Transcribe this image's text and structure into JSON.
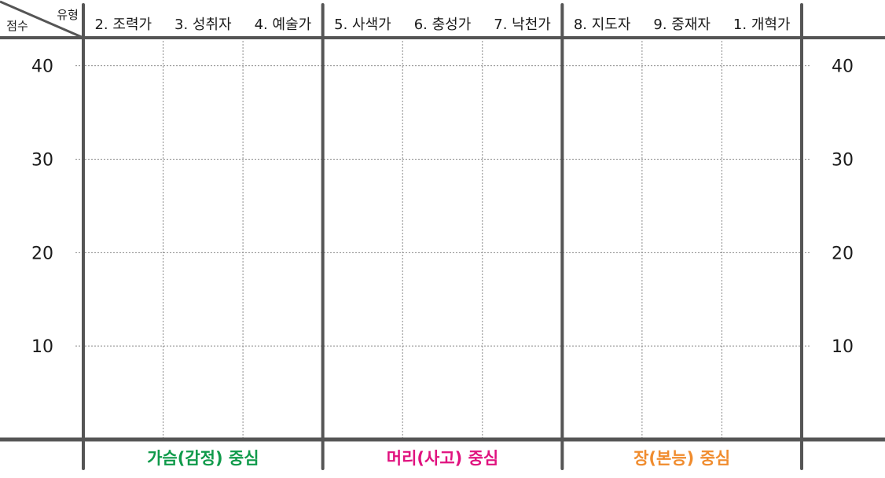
{
  "chart_data": {
    "type": "line",
    "title": "",
    "corner_labels": {
      "top_right": "유형",
      "bottom_left": "점수"
    },
    "categories": [
      "2. 조력가",
      "3. 성취자",
      "4. 예술가",
      "5. 사색가",
      "6. 충성가",
      "7. 낙천가",
      "8. 지도자",
      "9. 중재자",
      "1. 개혁가"
    ],
    "y_ticks": [
      40,
      30,
      20,
      10
    ],
    "ylim": [
      0,
      43
    ],
    "grid": true,
    "series": [],
    "groups": [
      {
        "label": "가슴(감정) 중심",
        "color": "#0f9a4a",
        "span": [
          0,
          2
        ]
      },
      {
        "label": "머리(사고) 중심",
        "color": "#e0127f",
        "span": [
          3,
          5
        ]
      },
      {
        "label": "장(본능) 중심",
        "color": "#f08c2e",
        "span": [
          6,
          8
        ]
      }
    ]
  },
  "colors": {
    "frame": "#555555",
    "grid": "#8a8a8a",
    "text": "#1a1a1a"
  }
}
